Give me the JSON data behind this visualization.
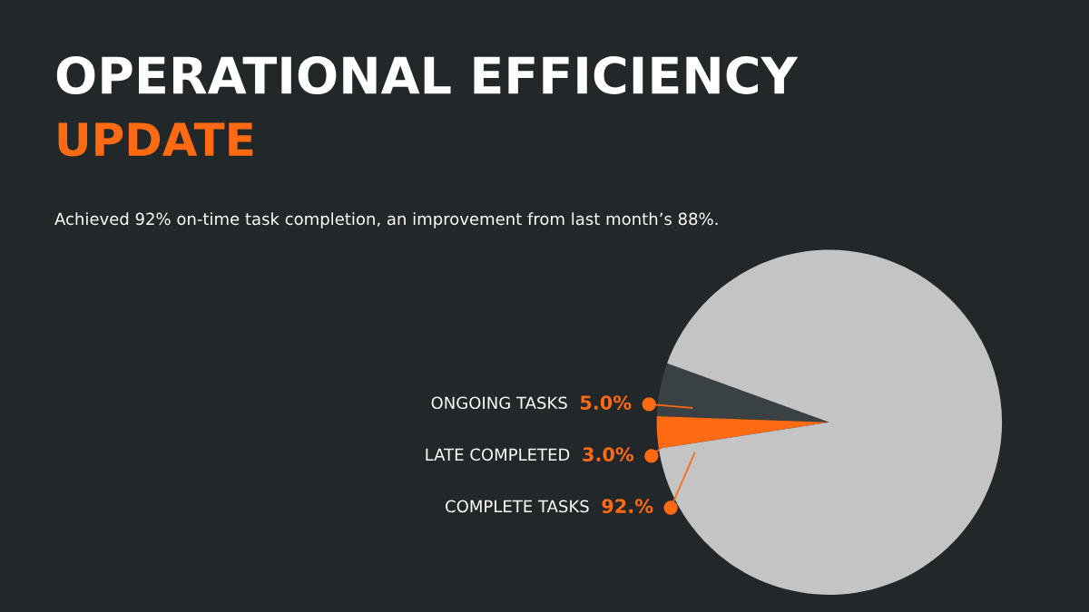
{
  "chart_data": {
    "type": "pie",
    "title": "OPERATIONAL EFFICIENCY",
    "subtitle": "UPDATE",
    "annotations": [
      "Achieved 92% on-time task completion, an improvement from last month’s 88%."
    ],
    "categories": [
      "ONGOING TASKS",
      "LATE COMPLETED",
      "COMPLETE TASKS"
    ],
    "values": [
      5,
      3,
      92
    ],
    "value_labels": [
      "5.0%",
      "3.0%",
      "92.%"
    ],
    "colors": [
      "#3a4145",
      "#ff6a13",
      "#c4c4c4"
    ]
  }
}
